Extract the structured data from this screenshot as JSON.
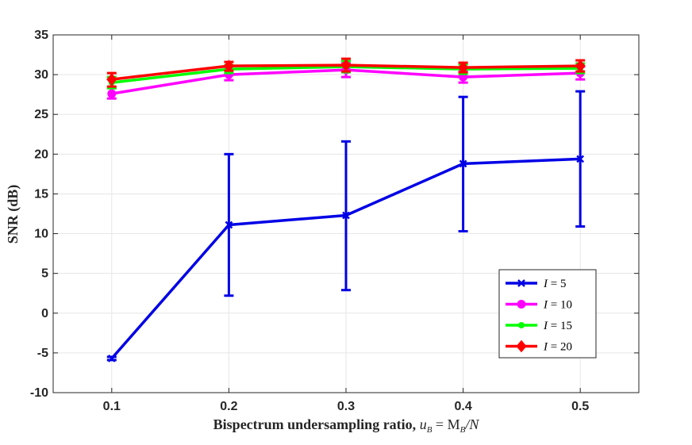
{
  "chart_data": {
    "type": "line",
    "title": "",
    "xlabel": "Bispectrum undersampling ratio, u_B = M_B/N",
    "xlabel_main": "Bispectrum undersampling ratio, ",
    "xlabel_math": "u",
    "xlabel_math_sub": "B",
    "xlabel_math_rest": " = M",
    "xlabel_math_sub2": "B",
    "xlabel_math_tail": "/N",
    "ylabel": "SNR (dB)",
    "xlim": [
      0.05,
      0.55
    ],
    "ylim": [
      -10,
      35
    ],
    "x": [
      0.1,
      0.2,
      0.3,
      0.4,
      0.5
    ],
    "x_ticks": [
      0.1,
      0.2,
      0.3,
      0.4,
      0.5
    ],
    "x_tick_labels": [
      "0.1",
      "0.2",
      "0.3",
      "0.4",
      "0.5"
    ],
    "y_ticks": [
      -10,
      -5,
      0,
      5,
      10,
      15,
      20,
      25,
      30,
      35
    ],
    "y_tick_labels": [
      "-10",
      "-5",
      "0",
      "5",
      "10",
      "15",
      "20",
      "25",
      "30",
      "35"
    ],
    "grid": true,
    "legend_position": "bottom-right",
    "series": [
      {
        "name": "I = 5",
        "legend_var": "I",
        "legend_val": "= 5",
        "color": "#0000e6",
        "marker": "x",
        "values": [
          -5.7,
          11.1,
          12.3,
          18.8,
          19.4
        ],
        "err_low": [
          -5.9,
          2.2,
          2.9,
          10.3,
          10.9
        ],
        "err_high": [
          -5.5,
          20.0,
          21.6,
          27.2,
          27.9
        ]
      },
      {
        "name": "I = 10",
        "legend_var": "I",
        "legend_val": "= 10",
        "color": "#ff00ff",
        "marker": "circle",
        "values": [
          27.6,
          30.0,
          30.6,
          29.7,
          30.2
        ],
        "err_low": [
          27.0,
          29.3,
          29.7,
          29.0,
          29.4
        ],
        "err_high": [
          28.3,
          30.7,
          31.5,
          30.4,
          31.0
        ]
      },
      {
        "name": "I = 15",
        "legend_var": "I",
        "legend_val": "= 15",
        "color": "#00ff00",
        "marker": "dot",
        "values": [
          29.0,
          30.7,
          31.0,
          30.7,
          30.8
        ],
        "err_low": [
          28.3,
          30.2,
          30.3,
          30.1,
          30.2
        ],
        "err_high": [
          29.7,
          31.2,
          31.7,
          31.3,
          31.4
        ]
      },
      {
        "name": "I = 20",
        "legend_var": "I",
        "legend_val": "= 20",
        "color": "#ff0000",
        "marker": "diamond",
        "values": [
          29.4,
          31.1,
          31.2,
          30.9,
          31.1
        ],
        "err_low": [
          28.5,
          30.5,
          30.4,
          30.3,
          30.4
        ],
        "err_high": [
          30.2,
          31.6,
          32.0,
          31.5,
          31.8
        ]
      }
    ]
  }
}
